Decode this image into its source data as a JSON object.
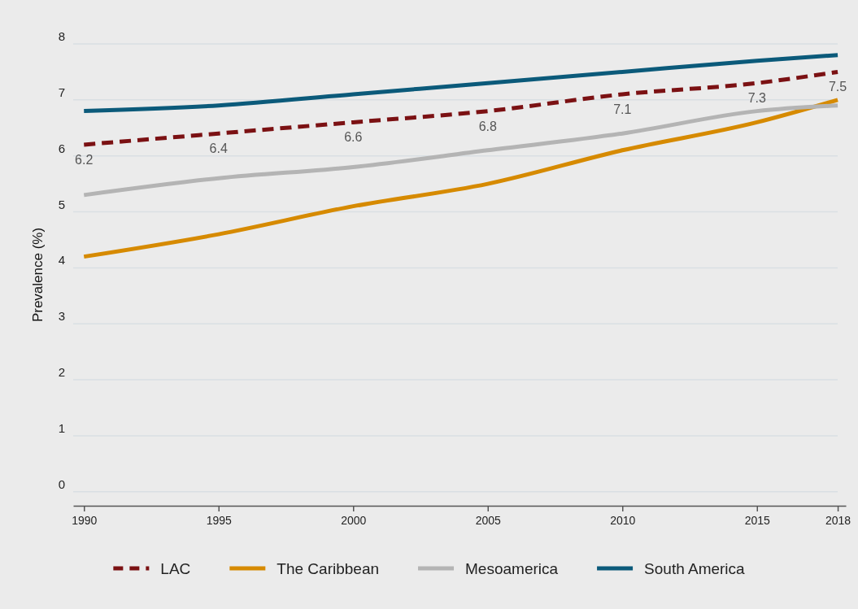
{
  "chart_data": {
    "type": "line",
    "ylabel": "Prevalence (%)",
    "x": [
      1990,
      1995,
      2000,
      2005,
      2010,
      2015,
      2018
    ],
    "xlim": [
      1989.6,
      2018.3
    ],
    "xticks": [
      1990,
      1995,
      2000,
      2005,
      2010,
      2015,
      2018
    ],
    "ylim": [
      -0.25,
      8
    ],
    "yticks": [
      0,
      1,
      2,
      3,
      4,
      5,
      6,
      7,
      8
    ],
    "grid": "y",
    "legend": "bottom",
    "series": [
      {
        "name": "LAC",
        "color": "#7b1113",
        "line_style": "dashed",
        "values": [
          6.2,
          6.4,
          6.6,
          6.8,
          7.1,
          7.3,
          7.5
        ],
        "value_labels": [
          "6.2",
          "6.4",
          "6.6",
          "6.8",
          "7.1",
          "7.3",
          "7.5"
        ]
      },
      {
        "name": "The Caribbean",
        "color": "#d68a00",
        "line_style": "solid",
        "values": [
          4.2,
          4.6,
          5.1,
          5.5,
          6.1,
          6.6,
          7.0
        ]
      },
      {
        "name": "Mesoamerica",
        "color": "#b4b4b4",
        "line_style": "solid",
        "values": [
          5.3,
          5.6,
          5.8,
          6.1,
          6.4,
          6.8,
          6.9
        ]
      },
      {
        "name": "South America",
        "color": "#0b5a7a",
        "line_style": "solid",
        "values": [
          6.8,
          6.9,
          7.1,
          7.3,
          7.5,
          7.7,
          7.8
        ]
      }
    ]
  }
}
